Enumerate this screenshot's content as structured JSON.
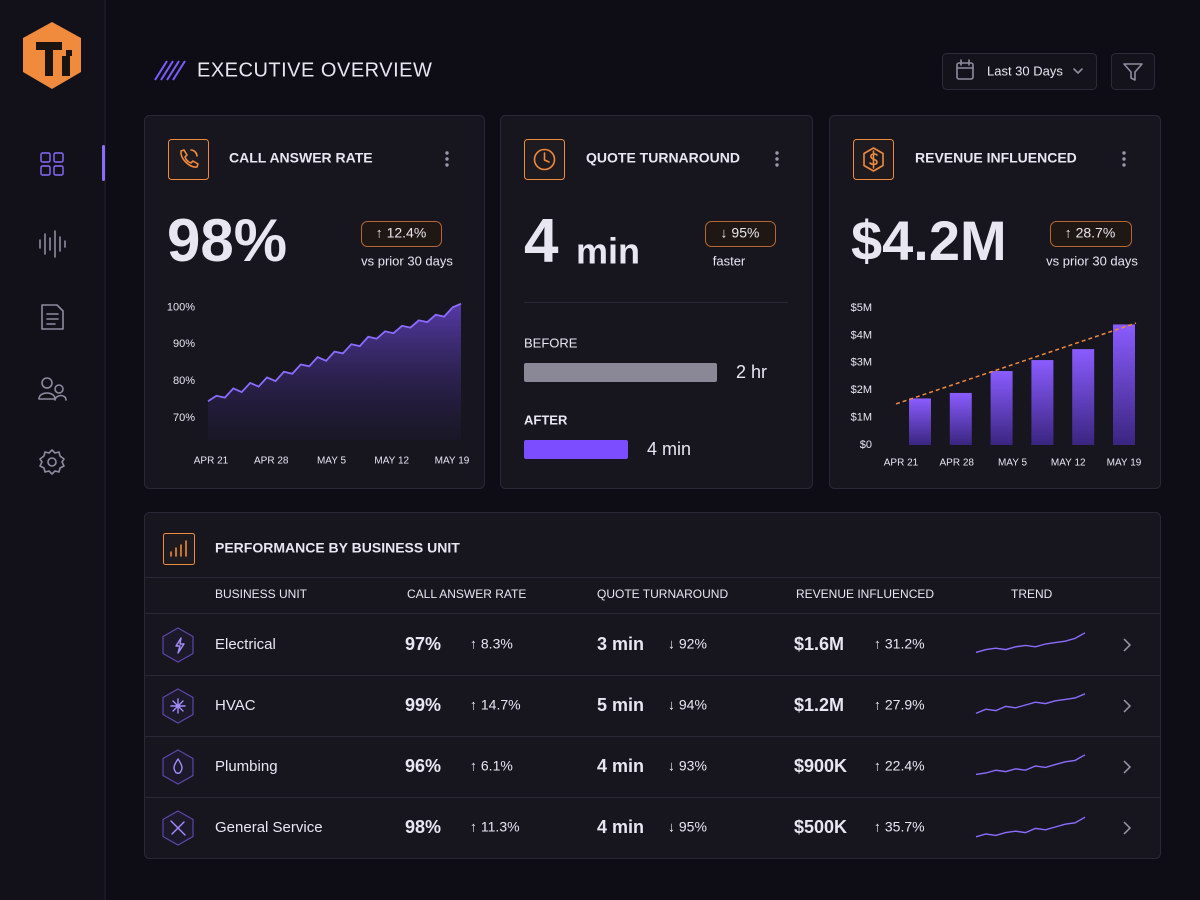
{
  "header": {
    "title": "EXECUTIVE OVERVIEW",
    "date_range": "Last 30 Days"
  },
  "cards": [
    {
      "title": "CALL ANSWER RATE",
      "value": "98%",
      "change": "↑ 12.4%",
      "note": "vs prior 30 days",
      "chart_data": {
        "type": "area",
        "color": "#8b6cff",
        "x_labels": [
          "APR 21",
          "APR 28",
          "MAY 5",
          "MAY 12",
          "MAY 19"
        ],
        "values": [
          74.5,
          76,
          75.5,
          78,
          77,
          79.5,
          78.5,
          81,
          80,
          82.5,
          82,
          84.5,
          84,
          86.5,
          85.5,
          88,
          87.5,
          90,
          89.5,
          92,
          91.5,
          93.5,
          93,
          95,
          94.5,
          96.5,
          96,
          98,
          97.5,
          100,
          101
        ],
        "ylim": [
          64,
          102
        ],
        "yticks": [
          {
            "value": 70,
            "label": "70%"
          },
          {
            "value": 80,
            "label": "80%"
          },
          {
            "value": 90,
            "label": "90%"
          },
          {
            "value": 100,
            "label": "100%"
          }
        ]
      }
    },
    {
      "title": "QUOTE TURNAROUND",
      "value": "4",
      "unit": "min",
      "change": "↓ 95%",
      "note": "faster",
      "before": {
        "label": "BEFORE",
        "value": "2 hr"
      },
      "after": {
        "label": "AFTER",
        "value": "4 min"
      }
    },
    {
      "title": "REVENUE INFLUENCED",
      "value": "$4.2M",
      "change": "↑ 28.7%",
      "note": "vs prior 30 days",
      "chart_data": {
        "type": "bar",
        "color": "#7c4dff",
        "trend_color": "#f08a3c",
        "x_labels": [
          "APR 21",
          "APR 28",
          "MAY 5",
          "MAY 12",
          "MAY 19"
        ],
        "values": [
          1.7,
          1.9,
          2.7,
          3.1,
          3.5,
          4.4
        ],
        "trend": [
          1.5,
          4.45
        ],
        "ylim": [
          0,
          5
        ],
        "yticks": [
          {
            "value": 0,
            "label": "$0"
          },
          {
            "value": 1,
            "label": "$1M"
          },
          {
            "value": 2,
            "label": "$2M"
          },
          {
            "value": 3,
            "label": "$3M"
          },
          {
            "value": 4,
            "label": "$4M"
          },
          {
            "value": 5,
            "label": "$5M"
          }
        ]
      }
    }
  ],
  "table": {
    "title": "PERFORMANCE BY BUSINESS UNIT",
    "columns": [
      "BUSINESS UNIT",
      "CALL ANSWER RATE",
      "QUOTE TURNAROUND",
      "REVENUE INFLUENCED",
      "TREND"
    ],
    "trend_ylim": [
      0,
      10
    ],
    "rows": [
      {
        "unit": "Electrical",
        "rate": "97%",
        "rate_change": "↑ 8.3%",
        "turnaround": "3 min",
        "turnaround_change": "↓ 92%",
        "revenue": "$1.6M",
        "revenue_change": "↑ 31.2%",
        "trend": [
          2,
          3,
          3.5,
          3,
          4,
          4.5,
          4,
          5,
          5.5,
          6,
          7,
          9
        ]
      },
      {
        "unit": "HVAC",
        "rate": "99%",
        "rate_change": "↑ 14.7%",
        "turnaround": "5 min",
        "turnaround_change": "↓ 94%",
        "revenue": "$1.2M",
        "revenue_change": "↑ 27.9%",
        "trend": [
          2,
          3.5,
          3,
          4.5,
          4,
          5,
          6,
          5.5,
          6.5,
          7,
          7.5,
          9
        ]
      },
      {
        "unit": "Plumbing",
        "rate": "96%",
        "rate_change": "↑ 6.1%",
        "turnaround": "4 min",
        "turnaround_change": "↓ 93%",
        "revenue": "$900K",
        "revenue_change": "↑ 22.4%",
        "trend": [
          2,
          2.5,
          3.5,
          3,
          4,
          3.5,
          5,
          4.5,
          5.5,
          6.5,
          7,
          9
        ]
      },
      {
        "unit": "General Service",
        "rate": "98%",
        "rate_change": "↑ 11.3%",
        "turnaround": "4 min",
        "turnaround_change": "↓ 95%",
        "revenue": "$500K",
        "revenue_change": "↑ 35.7%",
        "trend": [
          1.5,
          2.5,
          2,
          3,
          3.5,
          3,
          4.5,
          4,
          5,
          6,
          6.5,
          8.5
        ]
      }
    ]
  }
}
